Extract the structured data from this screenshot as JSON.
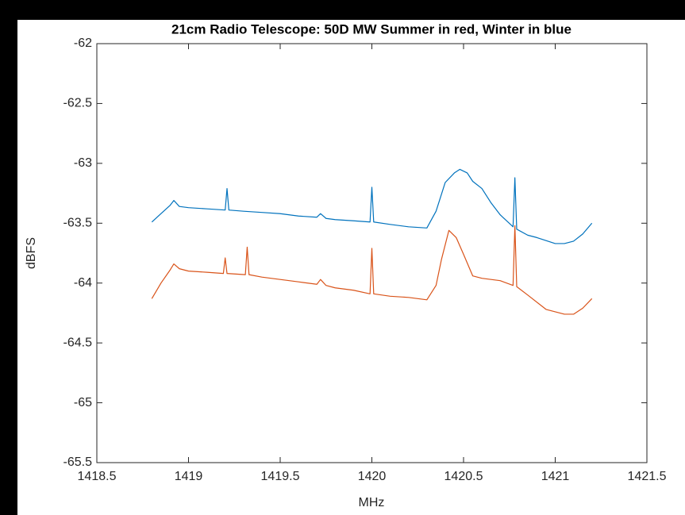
{
  "chart_data": {
    "type": "line",
    "title": "21cm Radio Telescope: 50D MW Summer in red, Winter in blue",
    "xlabel": "MHz",
    "ylabel": "dBFS",
    "xlim": [
      1418.5,
      1421.5
    ],
    "xticks": [
      1418.5,
      1419,
      1419.5,
      1420,
      1420.5,
      1421,
      1421.5
    ],
    "ylim": [
      -65.5,
      -62
    ],
    "yticks": [
      -65.5,
      -65,
      -64.5,
      -64,
      -63.5,
      -63,
      -62.5,
      -62
    ],
    "grid": false,
    "series": [
      {
        "color": "#0072BD",
        "x": [
          1418.8,
          1418.85,
          1418.9,
          1418.92,
          1418.95,
          1419.0,
          1419.1,
          1419.2,
          1419.21,
          1419.22,
          1419.3,
          1419.4,
          1419.5,
          1419.6,
          1419.7,
          1419.72,
          1419.75,
          1419.8,
          1419.9,
          1419.99,
          1420.0,
          1420.01,
          1420.1,
          1420.2,
          1420.3,
          1420.35,
          1420.4,
          1420.45,
          1420.48,
          1420.52,
          1420.55,
          1420.6,
          1420.65,
          1420.7,
          1420.77,
          1420.78,
          1420.79,
          1420.85,
          1420.9,
          1421.0,
          1421.05,
          1421.1,
          1421.15,
          1421.2
        ],
        "values": [
          -63.49,
          -63.42,
          -63.35,
          -63.31,
          -63.36,
          -63.37,
          -63.38,
          -63.39,
          -63.21,
          -63.39,
          -63.4,
          -63.41,
          -63.42,
          -63.44,
          -63.45,
          -63.42,
          -63.46,
          -63.47,
          -63.48,
          -63.49,
          -63.2,
          -63.49,
          -63.51,
          -63.53,
          -63.54,
          -63.4,
          -63.16,
          -63.08,
          -63.05,
          -63.08,
          -63.15,
          -63.21,
          -63.33,
          -63.43,
          -63.53,
          -63.12,
          -63.55,
          -63.6,
          -63.62,
          -63.67,
          -63.67,
          -63.65,
          -63.59,
          -63.5
        ]
      },
      {
        "color": "#D95319",
        "x": [
          1418.8,
          1418.85,
          1418.9,
          1418.92,
          1418.95,
          1419.0,
          1419.1,
          1419.19,
          1419.2,
          1419.21,
          1419.31,
          1419.32,
          1419.33,
          1419.4,
          1419.5,
          1419.6,
          1419.7,
          1419.72,
          1419.75,
          1419.8,
          1419.9,
          1419.99,
          1420.0,
          1420.01,
          1420.1,
          1420.2,
          1420.3,
          1420.35,
          1420.38,
          1420.42,
          1420.46,
          1420.5,
          1420.55,
          1420.6,
          1420.7,
          1420.77,
          1420.78,
          1420.79,
          1420.85,
          1420.95,
          1421.05,
          1421.1,
          1421.15,
          1421.2
        ],
        "values": [
          -64.13,
          -64.0,
          -63.89,
          -63.84,
          -63.88,
          -63.9,
          -63.91,
          -63.92,
          -63.79,
          -63.92,
          -63.93,
          -63.7,
          -63.93,
          -63.95,
          -63.97,
          -63.99,
          -64.01,
          -63.97,
          -64.02,
          -64.04,
          -64.06,
          -64.09,
          -63.71,
          -64.09,
          -64.11,
          -64.12,
          -64.14,
          -64.02,
          -63.8,
          -63.56,
          -63.62,
          -63.76,
          -63.94,
          -63.96,
          -63.98,
          -64.02,
          -63.52,
          -64.03,
          -64.1,
          -64.22,
          -64.26,
          -64.26,
          -64.21,
          -64.13
        ]
      }
    ]
  }
}
